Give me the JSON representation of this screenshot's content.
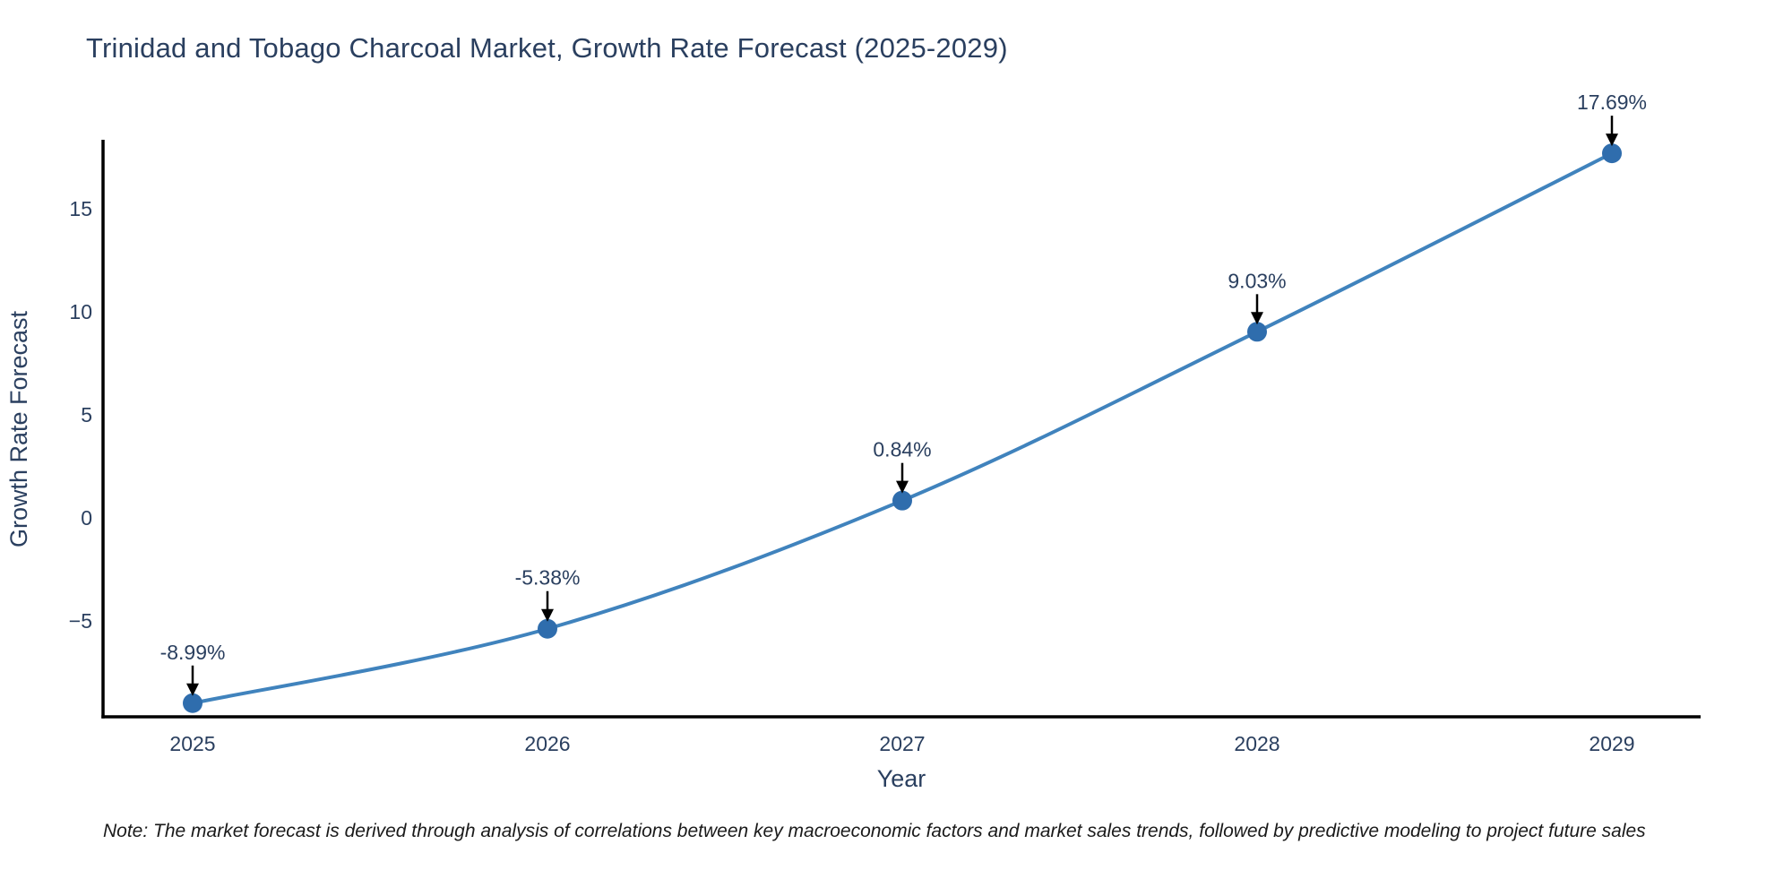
{
  "note": "Note: The market forecast is derived through analysis of correlations between key macroeconomic factors and market sales trends, followed by predictive modeling to project future sales",
  "chart_data": {
    "type": "line",
    "title": "Trinidad and Tobago Charcoal Market, Growth Rate Forecast (2025-2029)",
    "xlabel": "Year",
    "ylabel": "Growth Rate Forecast",
    "x": [
      2025,
      2026,
      2027,
      2028,
      2029
    ],
    "values": [
      -8.99,
      -5.38,
      0.84,
      9.03,
      17.69
    ],
    "point_labels": [
      "-8.99%",
      "-5.38%",
      "0.84%",
      "9.03%",
      "17.69%"
    ],
    "x_tick_labels": [
      "2025",
      "2026",
      "2027",
      "2028",
      "2029"
    ],
    "y_ticks": [
      15,
      10,
      5,
      0,
      -5
    ],
    "y_tick_labels": [
      "15",
      "10",
      "5",
      "0",
      "−5"
    ],
    "ylim": [
      -9.7,
      18.3
    ],
    "grid": false,
    "legend": "none",
    "line_shape": "spline",
    "line_color": "#4083bd",
    "marker_color": "#2f6dad",
    "axis_color": "#000000",
    "text_color": "#2a3f5f",
    "arrow_color": "#000000"
  }
}
